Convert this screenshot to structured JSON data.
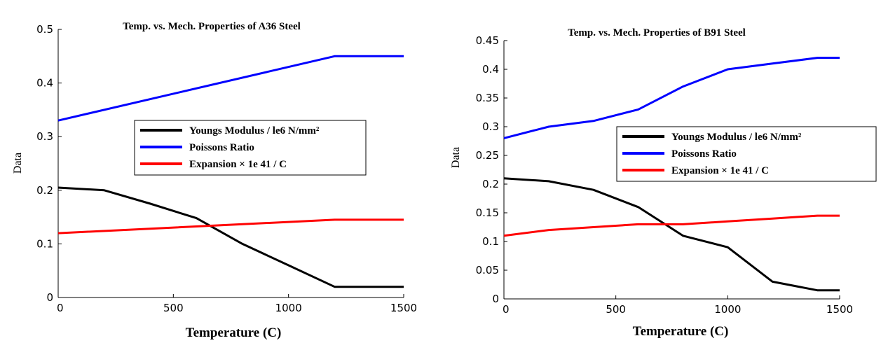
{
  "chart_data": [
    {
      "type": "line",
      "title": "Temp. vs. Mech. Properties of A36 Steel",
      "xlabel": "Temperature (C)",
      "ylabel": "Data",
      "xlim": [
        0,
        1500
      ],
      "ylim": [
        0,
        0.5
      ],
      "xticks": [
        0,
        500,
        1000,
        1500
      ],
      "xtick_labels": [
        "0",
        "500",
        "1000",
        "1500"
      ],
      "yticks": [
        0,
        0.1,
        0.2,
        0.3,
        0.4,
        0.5
      ],
      "ytick_labels": [
        "0",
        "0.1",
        "0.2",
        "0.3",
        "0.4",
        "0.5"
      ],
      "grid": false,
      "legend_position": "center-right",
      "series": [
        {
          "name": "Youngs Modulus / le6 N/mm²",
          "color": "#000000",
          "x": [
            0,
            200,
            400,
            600,
            800,
            1000,
            1200,
            1500
          ],
          "y": [
            0.205,
            0.2,
            0.175,
            0.148,
            0.1,
            0.06,
            0.02,
            0.02
          ]
        },
        {
          "name": "Poissons Ratio",
          "color": "#0000ff",
          "x": [
            0,
            1200,
            1500
          ],
          "y": [
            0.33,
            0.45,
            0.45
          ]
        },
        {
          "name": "Expansion × 1e 41 / C",
          "color": "#ff0000",
          "x": [
            0,
            1200,
            1500
          ],
          "y": [
            0.12,
            0.145,
            0.145
          ]
        }
      ]
    },
    {
      "type": "line",
      "title": "Temp. vs. Mech. Properties of B91 Steel",
      "xlabel": "Temperature (C)",
      "ylabel": "Data",
      "xlim": [
        0,
        1500
      ],
      "ylim": [
        0,
        0.45
      ],
      "xticks": [
        0,
        500,
        1000,
        1500
      ],
      "xtick_labels": [
        "0",
        "500",
        "1000",
        "1500"
      ],
      "yticks": [
        0,
        0.05,
        0.1,
        0.15,
        0.2,
        0.25,
        0.3,
        0.35,
        0.4,
        0.45
      ],
      "ytick_labels": [
        "0",
        "0.05",
        "0.1",
        "0.15",
        "0.2",
        "0.25",
        "0.3",
        "0.35",
        "0.4",
        "0.45"
      ],
      "grid": false,
      "legend_position": "center-right",
      "series": [
        {
          "name": "Youngs Modulus / le6 N/mm²",
          "color": "#000000",
          "x": [
            0,
            200,
            400,
            600,
            800,
            1000,
            1200,
            1400,
            1500
          ],
          "y": [
            0.21,
            0.205,
            0.19,
            0.16,
            0.11,
            0.09,
            0.03,
            0.015,
            0.015
          ]
        },
        {
          "name": "Poissons Ratio",
          "color": "#0000ff",
          "x": [
            0,
            200,
            400,
            600,
            800,
            1000,
            1200,
            1400,
            1500
          ],
          "y": [
            0.28,
            0.3,
            0.31,
            0.33,
            0.37,
            0.4,
            0.41,
            0.42,
            0.42
          ]
        },
        {
          "name": "Expansion × 1e 41 / C",
          "color": "#ff0000",
          "x": [
            0,
            200,
            400,
            600,
            800,
            1000,
            1200,
            1400,
            1500
          ],
          "y": [
            0.11,
            0.12,
            0.125,
            0.13,
            0.13,
            0.135,
            0.14,
            0.145,
            0.145
          ]
        }
      ]
    }
  ]
}
